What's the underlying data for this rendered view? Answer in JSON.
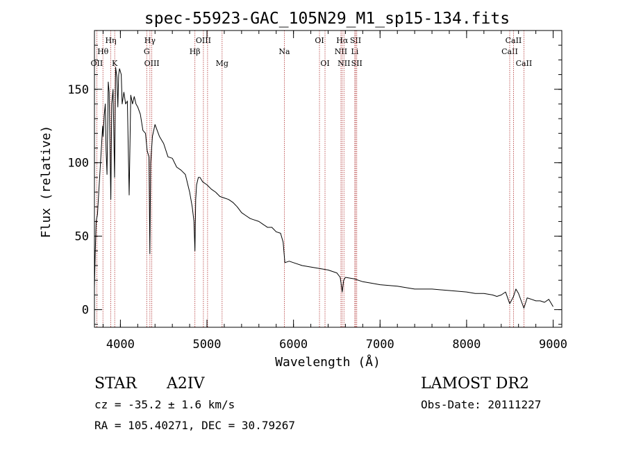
{
  "chart_data": {
    "type": "line",
    "title": "spec-55923-GAC_105N29_M1_sp15-134.fits",
    "xlabel": "Wavelength (Å)",
    "ylabel": "Flux (relative)",
    "xlim": [
      3700,
      9100
    ],
    "ylim": [
      -12,
      190
    ],
    "xticks": [
      4000,
      5000,
      6000,
      7000,
      8000,
      9000
    ],
    "yticks": [
      0,
      50,
      100,
      150
    ],
    "x_minor_step": 200,
    "y_minor_step": 10,
    "grid": false,
    "series": [
      {
        "x": [
          3700,
          3710,
          3720,
          3735,
          3750,
          3765,
          3780,
          3795,
          3800,
          3812,
          3825,
          3835,
          3845,
          3860,
          3870,
          3880,
          3889,
          3900,
          3915,
          3933,
          3945,
          3960,
          3970,
          3980,
          3990,
          4000,
          4010,
          4020,
          4040,
          4060,
          4080,
          4101,
          4120,
          4140,
          4160,
          4180,
          4200,
          4230,
          4260,
          4290,
          4310,
          4330,
          4340,
          4350,
          4370,
          4400,
          4450,
          4500,
          4550,
          4600,
          4650,
          4700,
          4750,
          4800,
          4830,
          4850,
          4861,
          4870,
          4880,
          4900,
          4920,
          4950,
          5000,
          5050,
          5100,
          5150,
          5200,
          5250,
          5300,
          5350,
          5400,
          5450,
          5500,
          5550,
          5600,
          5650,
          5700,
          5750,
          5800,
          5850,
          5880,
          5900,
          5950,
          6000,
          6100,
          6200,
          6300,
          6400,
          6500,
          6540,
          6563,
          6580,
          6600,
          6700,
          6800,
          6900,
          7000,
          7200,
          7400,
          7600,
          7800,
          8000,
          8100,
          8200,
          8300,
          8350,
          8400,
          8450,
          8498,
          8542,
          8570,
          8600,
          8662,
          8700,
          8750,
          8800,
          8850,
          8900,
          8950,
          9000
        ],
        "values": [
          15,
          40,
          60,
          65,
          80,
          95,
          110,
          125,
          118,
          132,
          140,
          108,
          92,
          155,
          148,
          110,
          75,
          140,
          150,
          90,
          165,
          158,
          138,
          160,
          164,
          162,
          160,
          140,
          148,
          140,
          142,
          78,
          146,
          140,
          145,
          140,
          138,
          133,
          122,
          120,
          108,
          104,
          38,
          100,
          118,
          126,
          118,
          113,
          104,
          103,
          97,
          95,
          92,
          80,
          70,
          60,
          40,
          75,
          85,
          90,
          90,
          87,
          85,
          82,
          80,
          77,
          76,
          75,
          73,
          70,
          66,
          64,
          62,
          61,
          60,
          58,
          56,
          56,
          53,
          52,
          46,
          32,
          33,
          32,
          30,
          29,
          28,
          27,
          25,
          22,
          12,
          20,
          22,
          21,
          19,
          18,
          17,
          16,
          14,
          14,
          13,
          12,
          11,
          11,
          10,
          9,
          10,
          12,
          4,
          9,
          14,
          11,
          1,
          8,
          7,
          6,
          6,
          5,
          7,
          2
        ],
        "color": "#000000"
      }
    ],
    "lines": [
      {
        "wl": 3727,
        "label": "OII",
        "row": 2
      },
      {
        "wl": 3798,
        "label": "Hθ",
        "row": 1
      },
      {
        "wl": 3889,
        "label": "Hη",
        "row": 0
      },
      {
        "wl": 3934,
        "label": "K",
        "row": 2
      },
      {
        "wl": 4304,
        "label": "G",
        "row": 1
      },
      {
        "wl": 4341,
        "label": "Hγ",
        "row": 0
      },
      {
        "wl": 4363,
        "label": "OIII",
        "row": 2
      },
      {
        "wl": 4861,
        "label": "Hβ",
        "row": 1
      },
      {
        "wl": 4959,
        "label": "OIII",
        "row": 0
      },
      {
        "wl": 5007,
        "label": "",
        "row": 0
      },
      {
        "wl": 5175,
        "label": "Mg",
        "row": 2
      },
      {
        "wl": 5894,
        "label": "Na",
        "row": 1
      },
      {
        "wl": 6300,
        "label": "OI",
        "row": 0
      },
      {
        "wl": 6364,
        "label": "OI",
        "row": 2
      },
      {
        "wl": 6548,
        "label": "NII",
        "row": 1
      },
      {
        "wl": 6563,
        "label": "Hα",
        "row": 0
      },
      {
        "wl": 6583,
        "label": "NII",
        "row": 2
      },
      {
        "wl": 6708,
        "label": "Li",
        "row": 1
      },
      {
        "wl": 6717,
        "label": "SII",
        "row": 0
      },
      {
        "wl": 6731,
        "label": "SII",
        "row": 2
      },
      {
        "wl": 8498,
        "label": "CaII",
        "row": 1
      },
      {
        "wl": 8542,
        "label": "CaII",
        "row": 0
      },
      {
        "wl": 8662,
        "label": "CaII",
        "row": 2
      }
    ]
  },
  "info": {
    "class_label": "STAR",
    "subclass": "A2IV",
    "survey": "LAMOST DR2",
    "cz": "cz = -35.2 ± 1.6 km/s",
    "obs_date": "Obs-Date: 20111227",
    "coords": "RA = 105.40271, DEC =  30.79267"
  }
}
